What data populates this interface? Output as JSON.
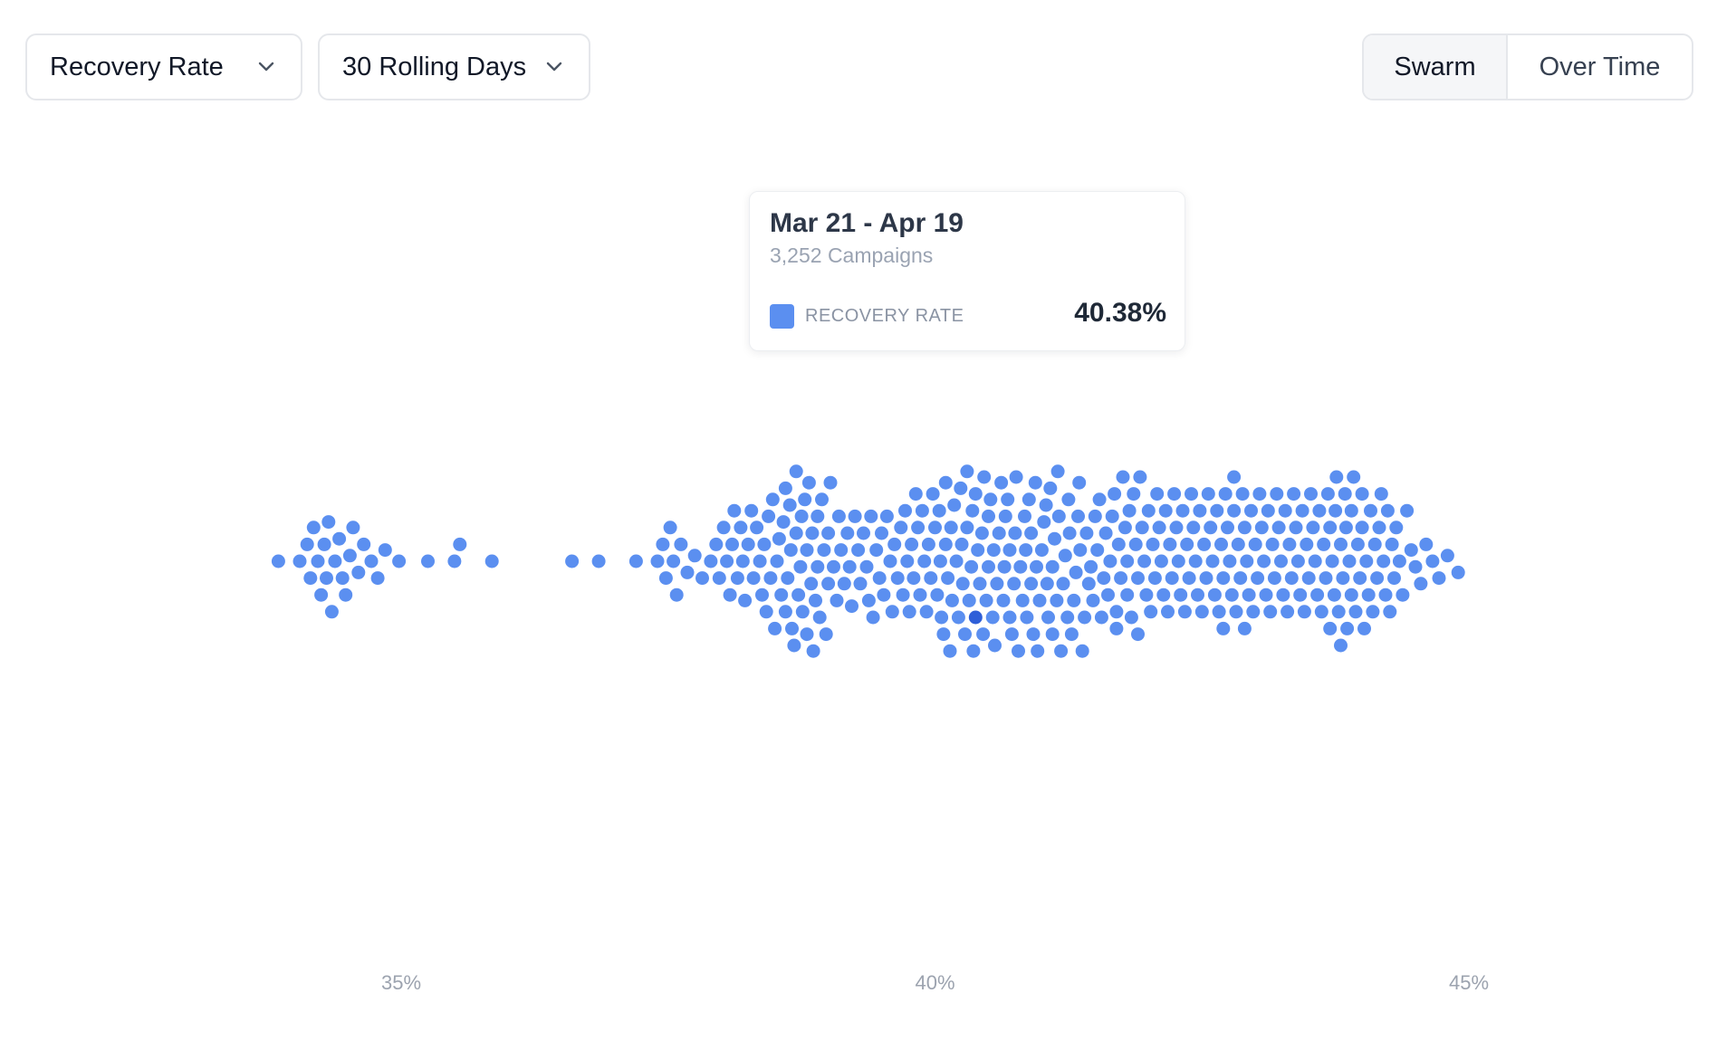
{
  "controls": {
    "metric_select": "Recovery Rate",
    "period_select": "30 Rolling Days",
    "view_toggle": {
      "options": [
        "Swarm",
        "Over Time"
      ],
      "selected": "Swarm"
    }
  },
  "tooltip": {
    "title": "Mar 21 - Apr 19",
    "subtitle": "3,252 Campaigns",
    "metric_label": "RECOVERY RATE",
    "value": "40.38%",
    "swatch_color": "#5b8ff0"
  },
  "colors": {
    "dot": "#5b8ff0",
    "highlight": "#2f5fd8",
    "tick_label": "#9ca3af"
  },
  "chart_data": {
    "type": "scatter",
    "subtype": "beeswarm",
    "x_axis": {
      "min": 33.8,
      "max": 45.0,
      "ticks": [
        35,
        40,
        45
      ],
      "tick_labels": [
        "35%",
        "40%",
        "45%"
      ]
    },
    "grid": false,
    "legend": "none",
    "highlight_value": 40.38,
    "values": [
      33.85,
      34.05,
      34.12,
      34.15,
      34.18,
      34.22,
      34.25,
      34.28,
      34.3,
      34.32,
      34.35,
      34.38,
      34.42,
      34.45,
      34.48,
      34.52,
      34.55,
      34.6,
      34.65,
      34.72,
      34.78,
      34.85,
      34.98,
      35.25,
      35.5,
      35.55,
      35.85,
      36.6,
      36.85,
      37.2,
      37.4,
      37.45,
      37.48,
      37.52,
      37.55,
      37.58,
      37.62,
      37.68,
      37.75,
      37.82,
      37.9,
      37.95,
      37.98,
      38.02,
      38.05,
      38.08,
      38.1,
      38.12,
      38.15,
      38.18,
      38.2,
      38.22,
      38.25,
      38.28,
      38.3,
      38.33,
      38.36,
      38.38,
      38.4,
      38.42,
      38.44,
      38.46,
      38.48,
      38.5,
      38.52,
      38.54,
      38.56,
      38.58,
      38.6,
      38.62,
      38.64,
      38.66,
      38.68,
      38.7,
      38.72,
      38.74,
      38.76,
      38.78,
      38.8,
      38.82,
      38.84,
      38.86,
      38.88,
      38.9,
      38.92,
      38.94,
      38.96,
      38.98,
      39.0,
      39.02,
      39.05,
      39.08,
      39.1,
      39.12,
      39.15,
      39.18,
      39.2,
      39.22,
      39.25,
      39.28,
      39.3,
      39.33,
      39.36,
      39.38,
      39.4,
      39.42,
      39.45,
      39.48,
      39.5,
      39.52,
      39.55,
      39.58,
      39.6,
      39.62,
      39.65,
      39.68,
      39.7,
      39.72,
      39.74,
      39.76,
      39.78,
      39.8,
      39.82,
      39.84,
      39.86,
      39.88,
      39.9,
      39.92,
      39.94,
      39.96,
      39.98,
      40.0,
      40.02,
      40.04,
      40.06,
      40.08,
      40.1,
      40.12,
      40.14,
      40.16,
      40.18,
      40.2,
      40.22,
      40.24,
      40.26,
      40.28,
      40.3,
      40.32,
      40.34,
      40.36,
      40.38,
      40.38,
      40.4,
      40.42,
      40.44,
      40.46,
      40.48,
      40.5,
      40.52,
      40.54,
      40.56,
      40.58,
      40.6,
      40.62,
      40.64,
      40.66,
      40.68,
      40.7,
      40.72,
      40.74,
      40.76,
      40.78,
      40.8,
      40.82,
      40.84,
      40.86,
      40.88,
      40.9,
      40.92,
      40.94,
      40.96,
      40.98,
      41.0,
      41.02,
      41.04,
      41.06,
      41.08,
      41.1,
      41.12,
      41.14,
      41.16,
      41.18,
      41.2,
      41.22,
      41.24,
      41.26,
      41.28,
      41.3,
      41.32,
      41.34,
      41.36,
      41.38,
      41.4,
      41.42,
      41.44,
      41.46,
      41.48,
      41.5,
      41.52,
      41.54,
      41.56,
      41.58,
      41.6,
      41.62,
      41.64,
      41.66,
      41.68,
      41.7,
      41.72,
      41.74,
      41.76,
      41.78,
      41.8,
      41.82,
      41.84,
      41.86,
      41.88,
      41.9,
      41.92,
      41.94,
      41.96,
      41.98,
      42.0,
      42.02,
      42.04,
      42.06,
      42.08,
      42.1,
      42.12,
      42.14,
      42.16,
      42.18,
      42.2,
      42.22,
      42.24,
      42.26,
      42.28,
      42.3,
      42.32,
      42.34,
      42.36,
      42.38,
      42.4,
      42.42,
      42.44,
      42.46,
      42.48,
      42.5,
      42.52,
      42.54,
      42.56,
      42.58,
      42.6,
      42.62,
      42.64,
      42.66,
      42.68,
      42.7,
      42.72,
      42.74,
      42.76,
      42.78,
      42.8,
      42.82,
      42.84,
      42.86,
      42.88,
      42.9,
      42.92,
      42.94,
      42.96,
      42.98,
      43.0,
      43.02,
      43.04,
      43.06,
      43.08,
      43.1,
      43.12,
      43.14,
      43.16,
      43.18,
      43.2,
      43.22,
      43.24,
      43.26,
      43.28,
      43.3,
      43.32,
      43.34,
      43.36,
      43.38,
      43.4,
      43.42,
      43.44,
      43.46,
      43.48,
      43.5,
      43.52,
      43.54,
      43.56,
      43.58,
      43.6,
      43.62,
      43.64,
      43.66,
      43.68,
      43.7,
      43.72,
      43.74,
      43.76,
      43.78,
      43.8,
      43.82,
      43.84,
      43.86,
      43.88,
      43.9,
      43.92,
      43.94,
      43.96,
      43.98,
      44.0,
      44.02,
      44.04,
      44.06,
      44.08,
      44.1,
      44.12,
      44.14,
      44.16,
      44.18,
      44.2,
      44.22,
      44.24,
      44.26,
      44.28,
      44.3,
      44.32,
      44.35,
      44.38,
      44.42,
      44.46,
      44.5,
      44.55,
      44.6,
      44.66,
      44.72,
      44.8,
      44.9,
      40.05,
      40.15,
      40.25,
      40.35,
      40.45,
      40.55,
      40.65,
      40.75,
      40.85,
      40.95,
      41.05,
      41.15,
      41.25,
      41.35,
      40.1,
      40.3,
      40.5,
      40.7,
      40.9,
      41.1,
      38.6,
      38.7,
      38.8,
      38.9,
      39.0,
      38.65,
      38.75,
      38.85,
      43.7,
      43.8,
      43.9,
      44.0,
      43.75,
      43.85,
      42.7,
      42.8,
      42.9,
      41.7,
      41.8,
      41.9
    ]
  }
}
